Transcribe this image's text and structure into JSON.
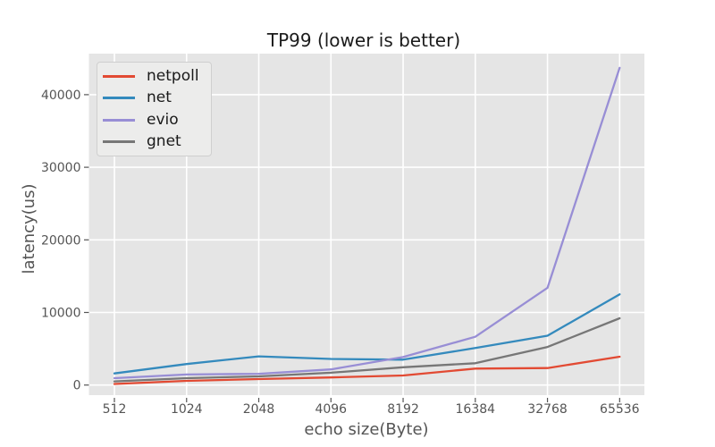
{
  "title": "TP99 (lower is better)",
  "chart_data": {
    "type": "line",
    "title": "TP99 (lower is better)",
    "xlabel": "echo size(Byte)",
    "ylabel": "latency(us)",
    "categories": [
      "512",
      "1024",
      "2048",
      "4096",
      "8192",
      "16384",
      "32768",
      "65536"
    ],
    "series": [
      {
        "name": "netpoll",
        "color": "#E24A33",
        "values": [
          150,
          580,
          820,
          1050,
          1320,
          2270,
          2340,
          3900
        ]
      },
      {
        "name": "net",
        "color": "#348ABD",
        "values": [
          1600,
          2900,
          3950,
          3600,
          3500,
          5100,
          6800,
          12500
        ]
      },
      {
        "name": "evio",
        "color": "#988ED5",
        "values": [
          950,
          1450,
          1550,
          2150,
          3850,
          6650,
          13400,
          43700
        ]
      },
      {
        "name": "gnet",
        "color": "#777777",
        "values": [
          500,
          950,
          1200,
          1700,
          2450,
          3000,
          5250,
          9200
        ]
      }
    ],
    "y_ticks": [
      0,
      10000,
      20000,
      30000,
      40000
    ],
    "y_tick_labels": [
      "0",
      "10000",
      "20000",
      "30000",
      "40000"
    ],
    "ylim": [
      -1400,
      45700
    ],
    "grid": "on",
    "legend_position": "upper left",
    "colors": {
      "plot_background": "#E5E5E5",
      "grid": "#FFFFFF",
      "tick_text": "#555555",
      "axis_label_text": "#555555",
      "title_text": "#1c1c1c",
      "legend_background": "#ECECEB",
      "legend_border": "#CFCFCF"
    }
  }
}
